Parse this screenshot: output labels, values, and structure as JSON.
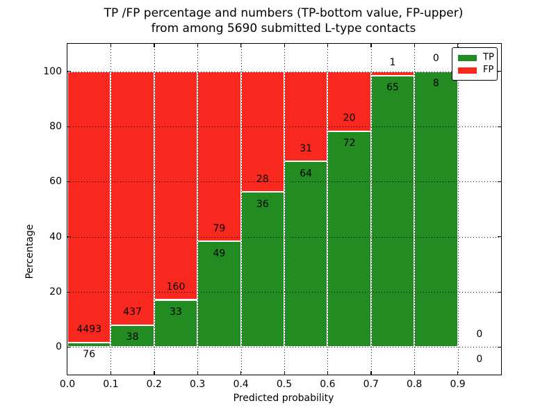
{
  "chart_data": {
    "type": "bar",
    "variant": "stacked-percentage",
    "title_line1": "TP /FP percentage and numbers (TP-bottom value, FP-upper)",
    "title_line2": "from among 5690 submitted L-type contacts",
    "total_submitted_contacts": 5690,
    "xlabel": "Predicted probability",
    "ylabel": "Percentage",
    "xlim": [
      0.0,
      1.0
    ],
    "ylim": [
      -10,
      110
    ],
    "grid": true,
    "x_tick_values": [
      0.0,
      0.1,
      0.2,
      0.3,
      0.4,
      0.5,
      0.6,
      0.7,
      0.8,
      0.9
    ],
    "x_tick_labels": [
      "0.0",
      "0.1",
      "0.2",
      "0.3",
      "0.4",
      "0.5",
      "0.6",
      "0.7",
      "0.8",
      "0.9"
    ],
    "y_tick_values": [
      0,
      20,
      40,
      60,
      80,
      100
    ],
    "y_tick_labels": [
      "0",
      "20",
      "40",
      "60",
      "80",
      "100"
    ],
    "bin_width": 0.1,
    "bins": [
      {
        "x0": 0.0,
        "tp": 76,
        "fp": 4493,
        "tp_pct": 1.66,
        "fp_pct": 98.34,
        "has_bar": true
      },
      {
        "x0": 0.1,
        "tp": 38,
        "fp": 437,
        "tp_pct": 8.0,
        "fp_pct": 92.0,
        "has_bar": true
      },
      {
        "x0": 0.2,
        "tp": 33,
        "fp": 160,
        "tp_pct": 17.1,
        "fp_pct": 82.9,
        "has_bar": true
      },
      {
        "x0": 0.3,
        "tp": 49,
        "fp": 79,
        "tp_pct": 38.28,
        "fp_pct": 61.72,
        "has_bar": true
      },
      {
        "x0": 0.4,
        "tp": 36,
        "fp": 28,
        "tp_pct": 56.25,
        "fp_pct": 43.75,
        "has_bar": true
      },
      {
        "x0": 0.5,
        "tp": 64,
        "fp": 31,
        "tp_pct": 67.37,
        "fp_pct": 32.63,
        "has_bar": true
      },
      {
        "x0": 0.6,
        "tp": 72,
        "fp": 20,
        "tp_pct": 78.26,
        "fp_pct": 21.74,
        "has_bar": true
      },
      {
        "x0": 0.7,
        "tp": 65,
        "fp": 1,
        "tp_pct": 98.48,
        "fp_pct": 1.52,
        "has_bar": true
      },
      {
        "x0": 0.8,
        "tp": 8,
        "fp": 0,
        "tp_pct": 100.0,
        "fp_pct": 0.0,
        "has_bar": true
      },
      {
        "x0": 0.9,
        "tp": 0,
        "fp": 0,
        "tp_pct": 0.0,
        "fp_pct": 0.0,
        "has_bar": false
      }
    ],
    "legend": {
      "position": "upper right",
      "entries": [
        {
          "label": "TP",
          "color": "#228b22"
        },
        {
          "label": "FP",
          "color": "#f8281e"
        }
      ]
    },
    "colors": {
      "tp": "#228b22",
      "fp": "#f8281e",
      "bar_edge": "#ffffff",
      "grid": "#000000",
      "text": "#000000",
      "background": "#ffffff"
    }
  }
}
